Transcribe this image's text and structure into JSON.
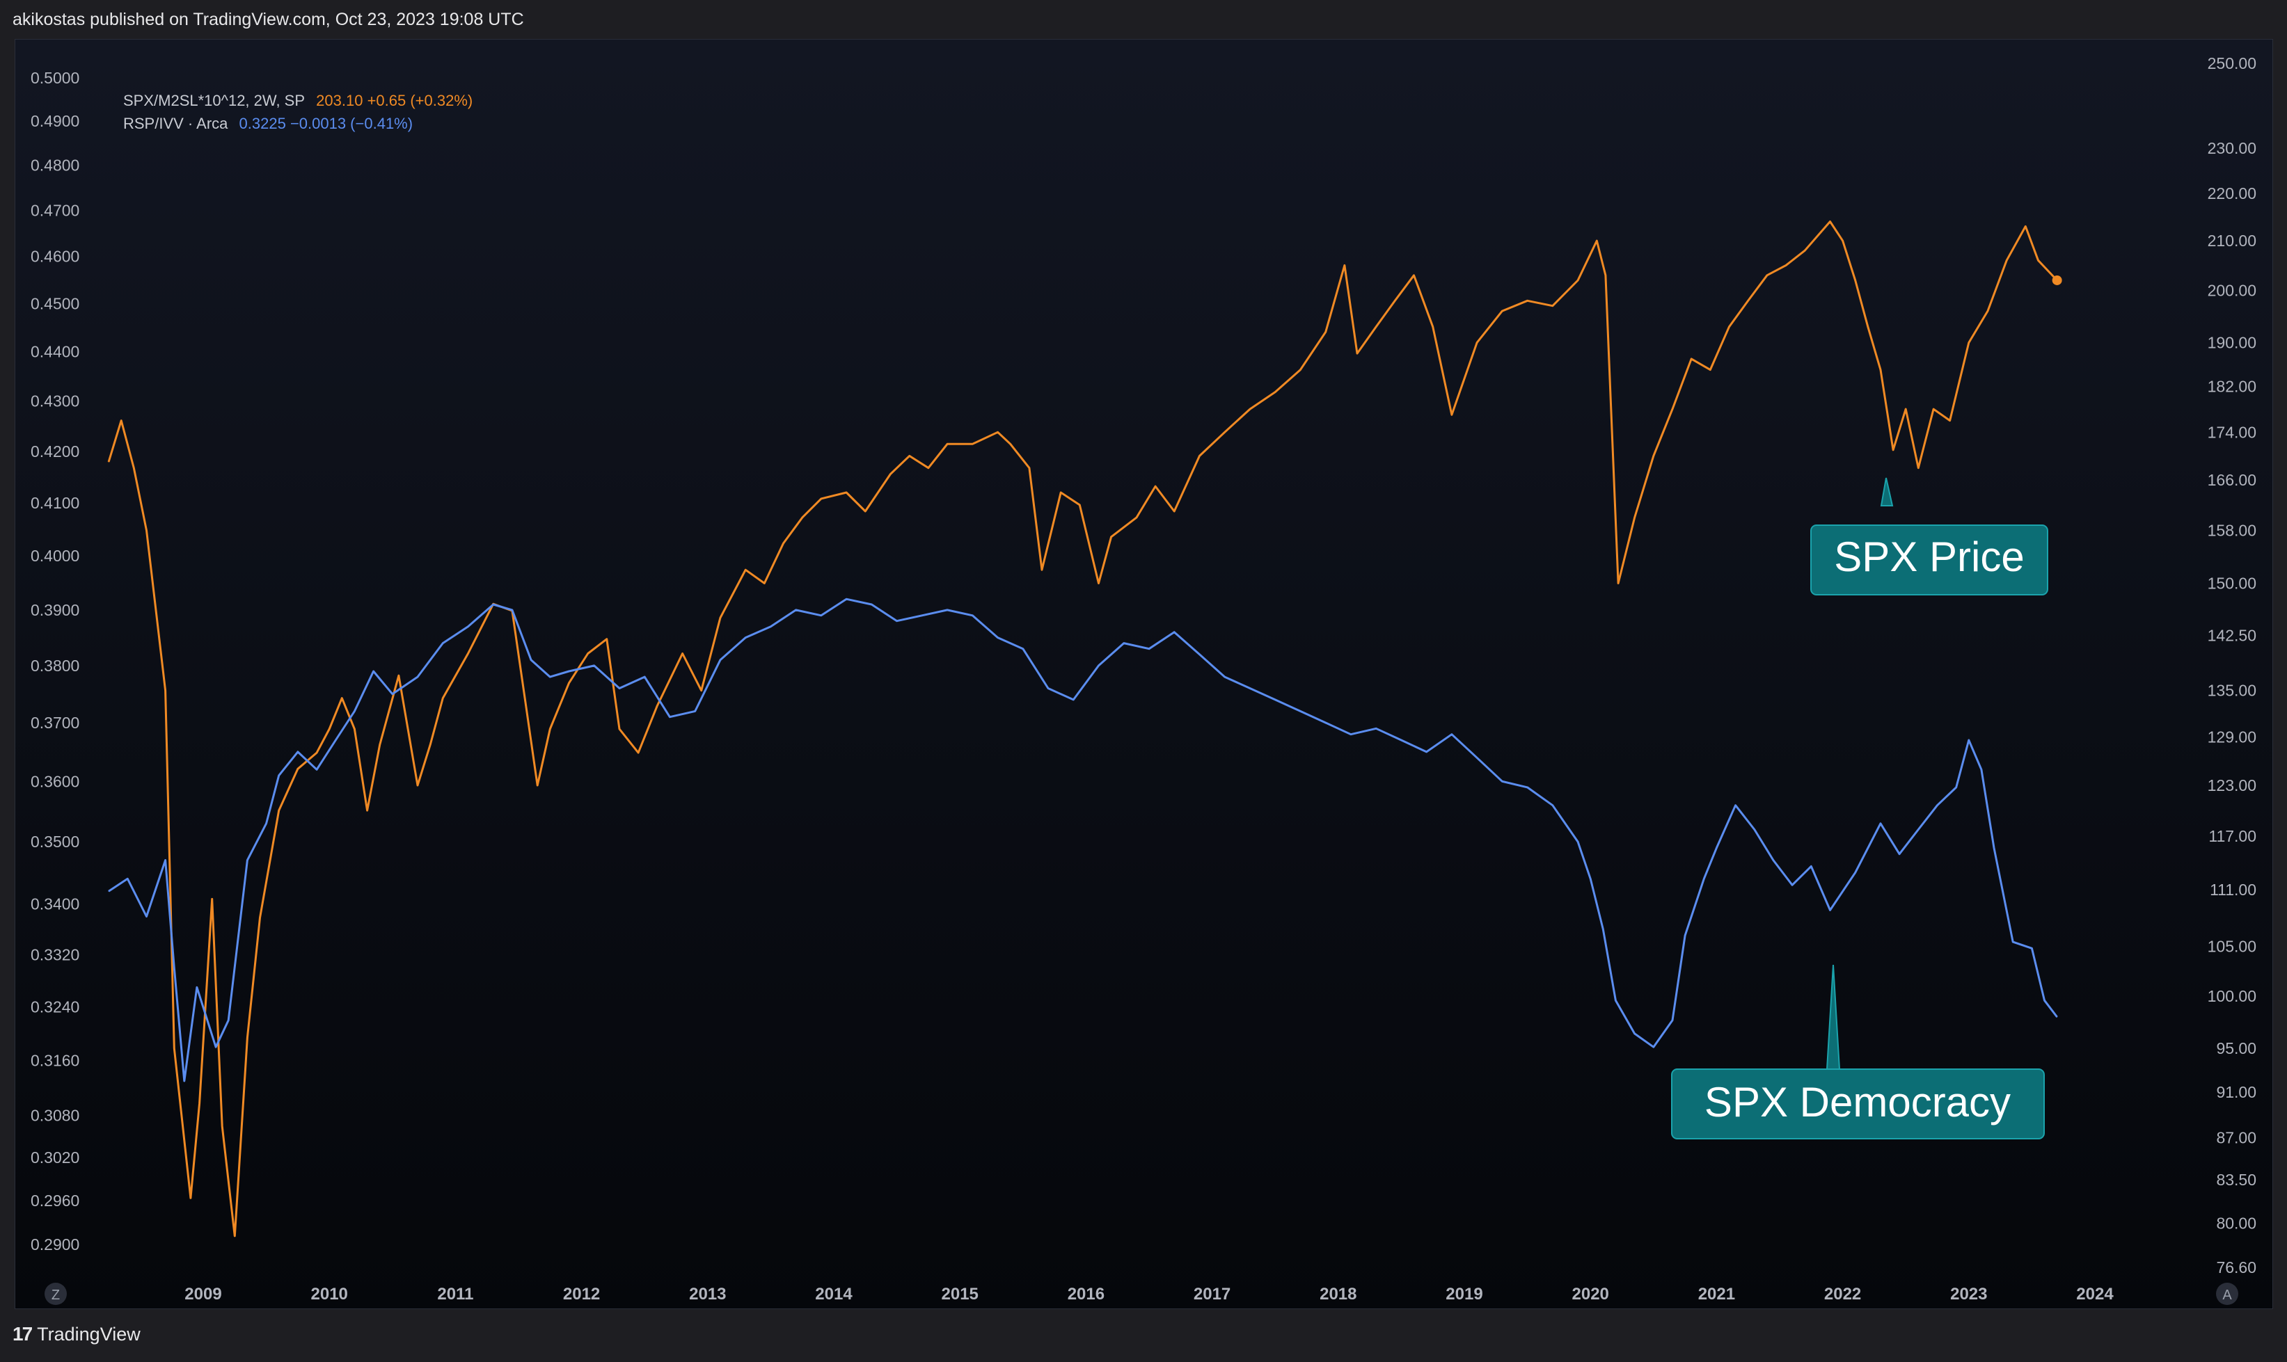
{
  "header": {
    "published_text": "akikostas published on TradingView.com, Oct 23, 2023 19:08 UTC"
  },
  "legend": {
    "series1": {
      "label": "SPX/M2SL*10^12, 2W, SP",
      "value": "203.10",
      "change": "+0.65 (+0.32%)"
    },
    "series2": {
      "label": "RSP/IVV · Arca",
      "value": "0.3225",
      "change": "−0.0013 (−0.41%)"
    }
  },
  "annotations": {
    "price": {
      "text": "SPX Price"
    },
    "democracy": {
      "text": "SPX Democracy"
    }
  },
  "buttons": {
    "left_scale": "Z",
    "right_scale": "A"
  },
  "footer": {
    "brand": "TradingView"
  },
  "colors": {
    "orange": "#f08a24",
    "blue": "#5b8def",
    "annotation_bg": "#0c6e75",
    "annotation_border": "#1ba3ac"
  },
  "chart_data": {
    "type": "line",
    "x_ticks": [
      "2009",
      "2010",
      "2011",
      "2012",
      "2013",
      "2014",
      "2015",
      "2016",
      "2017",
      "2018",
      "2019",
      "2020",
      "2021",
      "2022",
      "2023",
      "2024"
    ],
    "left_axis_ticks": [
      "0.5000",
      "0.4900",
      "0.4800",
      "0.4700",
      "0.4600",
      "0.4500",
      "0.4400",
      "0.4300",
      "0.4200",
      "0.4100",
      "0.4000",
      "0.3900",
      "0.3800",
      "0.3700",
      "0.3600",
      "0.3500",
      "0.3400",
      "0.3320",
      "0.3240",
      "0.3160",
      "0.3080",
      "0.3020",
      "0.2960",
      "0.2900"
    ],
    "right_axis_ticks": [
      "250.00",
      "230.00",
      "220.00",
      "210.00",
      "200.00",
      "190.00",
      "182.00",
      "174.00",
      "166.00",
      "158.00",
      "150.00",
      "142.50",
      "135.00",
      "129.00",
      "123.00",
      "117.00",
      "111.00",
      "105.00",
      "100.00",
      "95.00",
      "91.00",
      "87.00",
      "83.50",
      "80.00",
      "76.60"
    ],
    "series": [
      {
        "name": "SPX/M2SL*10^12, 2W, SP",
        "axis": "right",
        "points": [
          [
            2008.25,
            169
          ],
          [
            2008.35,
            176
          ],
          [
            2008.45,
            168
          ],
          [
            2008.55,
            158
          ],
          [
            2008.7,
            135
          ],
          [
            2008.77,
            95
          ],
          [
            2008.9,
            82
          ],
          [
            2008.97,
            90
          ],
          [
            2009.07,
            110
          ],
          [
            2009.15,
            88
          ],
          [
            2009.25,
            79
          ],
          [
            2009.35,
            96
          ],
          [
            2009.45,
            108
          ],
          [
            2009.6,
            120
          ],
          [
            2009.75,
            125
          ],
          [
            2009.9,
            127
          ],
          [
            2010.0,
            130
          ],
          [
            2010.1,
            134
          ],
          [
            2010.2,
            130
          ],
          [
            2010.3,
            120
          ],
          [
            2010.4,
            128
          ],
          [
            2010.55,
            137
          ],
          [
            2010.7,
            123
          ],
          [
            2010.8,
            128
          ],
          [
            2010.9,
            134
          ],
          [
            2011.1,
            140
          ],
          [
            2011.3,
            147
          ],
          [
            2011.45,
            146
          ],
          [
            2011.55,
            134
          ],
          [
            2011.65,
            123
          ],
          [
            2011.75,
            130
          ],
          [
            2011.9,
            136
          ],
          [
            2012.05,
            140
          ],
          [
            2012.2,
            142
          ],
          [
            2012.3,
            130
          ],
          [
            2012.45,
            127
          ],
          [
            2012.6,
            133
          ],
          [
            2012.8,
            140
          ],
          [
            2012.95,
            135
          ],
          [
            2013.1,
            145
          ],
          [
            2013.3,
            152
          ],
          [
            2013.45,
            150
          ],
          [
            2013.6,
            156
          ],
          [
            2013.75,
            160
          ],
          [
            2013.9,
            163
          ],
          [
            2014.1,
            164
          ],
          [
            2014.25,
            161
          ],
          [
            2014.45,
            167
          ],
          [
            2014.6,
            170
          ],
          [
            2014.75,
            168
          ],
          [
            2014.9,
            172
          ],
          [
            2015.1,
            172
          ],
          [
            2015.3,
            174
          ],
          [
            2015.4,
            172
          ],
          [
            2015.55,
            168
          ],
          [
            2015.65,
            152
          ],
          [
            2015.8,
            164
          ],
          [
            2015.95,
            162
          ],
          [
            2016.1,
            150
          ],
          [
            2016.2,
            157
          ],
          [
            2016.4,
            160
          ],
          [
            2016.55,
            165
          ],
          [
            2016.7,
            161
          ],
          [
            2016.9,
            170
          ],
          [
            2017.1,
            174
          ],
          [
            2017.3,
            178
          ],
          [
            2017.5,
            181
          ],
          [
            2017.7,
            185
          ],
          [
            2017.9,
            192
          ],
          [
            2018.05,
            205
          ],
          [
            2018.15,
            188
          ],
          [
            2018.3,
            193
          ],
          [
            2018.45,
            198
          ],
          [
            2018.6,
            203
          ],
          [
            2018.75,
            193
          ],
          [
            2018.9,
            177
          ],
          [
            2019.1,
            190
          ],
          [
            2019.3,
            196
          ],
          [
            2019.5,
            198
          ],
          [
            2019.7,
            197
          ],
          [
            2019.9,
            202
          ],
          [
            2020.05,
            210
          ],
          [
            2020.12,
            203
          ],
          [
            2020.22,
            150
          ],
          [
            2020.35,
            160
          ],
          [
            2020.5,
            170
          ],
          [
            2020.65,
            178
          ],
          [
            2020.8,
            187
          ],
          [
            2020.95,
            185
          ],
          [
            2021.1,
            193
          ],
          [
            2021.25,
            198
          ],
          [
            2021.4,
            203
          ],
          [
            2021.55,
            205
          ],
          [
            2021.7,
            208
          ],
          [
            2021.9,
            214
          ],
          [
            2022.0,
            210
          ],
          [
            2022.1,
            202
          ],
          [
            2022.2,
            193
          ],
          [
            2022.3,
            185
          ],
          [
            2022.4,
            171
          ],
          [
            2022.5,
            178
          ],
          [
            2022.6,
            168
          ],
          [
            2022.72,
            178
          ],
          [
            2022.85,
            176
          ],
          [
            2023.0,
            190
          ],
          [
            2023.15,
            196
          ],
          [
            2023.3,
            206
          ],
          [
            2023.45,
            213
          ],
          [
            2023.55,
            206
          ],
          [
            2023.7,
            202
          ]
        ]
      },
      {
        "name": "RSP/IVV · Arca",
        "axis": "left",
        "points": [
          [
            2008.25,
            0.342
          ],
          [
            2008.4,
            0.344
          ],
          [
            2008.55,
            0.338
          ],
          [
            2008.7,
            0.347
          ],
          [
            2008.77,
            0.33
          ],
          [
            2008.85,
            0.313
          ],
          [
            2008.95,
            0.327
          ],
          [
            2009.1,
            0.318
          ],
          [
            2009.2,
            0.322
          ],
          [
            2009.35,
            0.347
          ],
          [
            2009.5,
            0.353
          ],
          [
            2009.6,
            0.361
          ],
          [
            2009.75,
            0.365
          ],
          [
            2009.9,
            0.362
          ],
          [
            2010.05,
            0.367
          ],
          [
            2010.2,
            0.372
          ],
          [
            2010.35,
            0.379
          ],
          [
            2010.5,
            0.375
          ],
          [
            2010.7,
            0.378
          ],
          [
            2010.9,
            0.384
          ],
          [
            2011.1,
            0.387
          ],
          [
            2011.3,
            0.391
          ],
          [
            2011.45,
            0.39
          ],
          [
            2011.6,
            0.381
          ],
          [
            2011.75,
            0.378
          ],
          [
            2011.9,
            0.379
          ],
          [
            2012.1,
            0.38
          ],
          [
            2012.3,
            0.376
          ],
          [
            2012.5,
            0.378
          ],
          [
            2012.7,
            0.371
          ],
          [
            2012.9,
            0.372
          ],
          [
            2013.1,
            0.381
          ],
          [
            2013.3,
            0.385
          ],
          [
            2013.5,
            0.387
          ],
          [
            2013.7,
            0.39
          ],
          [
            2013.9,
            0.389
          ],
          [
            2014.1,
            0.392
          ],
          [
            2014.3,
            0.391
          ],
          [
            2014.5,
            0.388
          ],
          [
            2014.7,
            0.389
          ],
          [
            2014.9,
            0.39
          ],
          [
            2015.1,
            0.389
          ],
          [
            2015.3,
            0.385
          ],
          [
            2015.5,
            0.383
          ],
          [
            2015.7,
            0.376
          ],
          [
            2015.9,
            0.374
          ],
          [
            2016.1,
            0.38
          ],
          [
            2016.3,
            0.384
          ],
          [
            2016.5,
            0.383
          ],
          [
            2016.7,
            0.386
          ],
          [
            2016.9,
            0.382
          ],
          [
            2017.1,
            0.378
          ],
          [
            2017.3,
            0.376
          ],
          [
            2017.5,
            0.374
          ],
          [
            2017.7,
            0.372
          ],
          [
            2017.9,
            0.37
          ],
          [
            2018.1,
            0.368
          ],
          [
            2018.3,
            0.369
          ],
          [
            2018.5,
            0.367
          ],
          [
            2018.7,
            0.365
          ],
          [
            2018.9,
            0.368
          ],
          [
            2019.1,
            0.364
          ],
          [
            2019.3,
            0.36
          ],
          [
            2019.5,
            0.359
          ],
          [
            2019.7,
            0.356
          ],
          [
            2019.9,
            0.35
          ],
          [
            2020.0,
            0.344
          ],
          [
            2020.1,
            0.336
          ],
          [
            2020.2,
            0.325
          ],
          [
            2020.35,
            0.32
          ],
          [
            2020.5,
            0.318
          ],
          [
            2020.65,
            0.322
          ],
          [
            2020.75,
            0.335
          ],
          [
            2020.9,
            0.344
          ],
          [
            2021.0,
            0.349
          ],
          [
            2021.15,
            0.356
          ],
          [
            2021.3,
            0.352
          ],
          [
            2021.45,
            0.347
          ],
          [
            2021.6,
            0.343
          ],
          [
            2021.75,
            0.346
          ],
          [
            2021.9,
            0.339
          ],
          [
            2022.1,
            0.345
          ],
          [
            2022.3,
            0.353
          ],
          [
            2022.45,
            0.348
          ],
          [
            2022.6,
            0.352
          ],
          [
            2022.75,
            0.356
          ],
          [
            2022.9,
            0.359
          ],
          [
            2023.0,
            0.367
          ],
          [
            2023.1,
            0.362
          ],
          [
            2023.2,
            0.349
          ],
          [
            2023.35,
            0.334
          ],
          [
            2023.5,
            0.333
          ],
          [
            2023.6,
            0.325
          ],
          [
            2023.7,
            0.3225
          ]
        ]
      }
    ]
  }
}
